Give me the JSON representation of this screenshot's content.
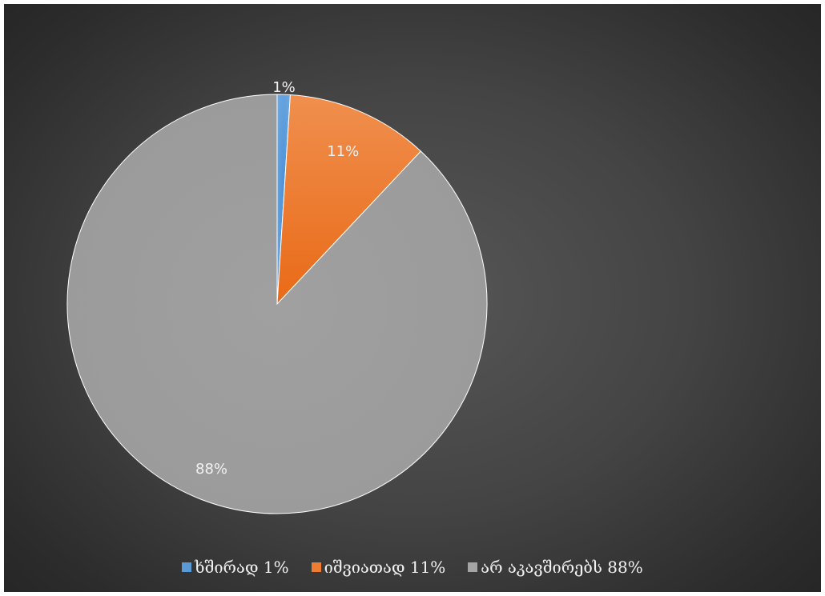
{
  "chart_data": {
    "type": "pie",
    "title": "",
    "categories": [
      "ხშირად 1%",
      "იშვიათად 11%",
      "არ აკავშირებს 88%"
    ],
    "values": [
      1,
      11,
      88
    ],
    "data_labels": [
      "1%",
      "11%",
      "88%"
    ],
    "colors": [
      "#5b9bd5",
      "#ed7d31",
      "#a5a5a5"
    ],
    "legend_position": "bottom",
    "start_angle": "top, clockwise"
  }
}
